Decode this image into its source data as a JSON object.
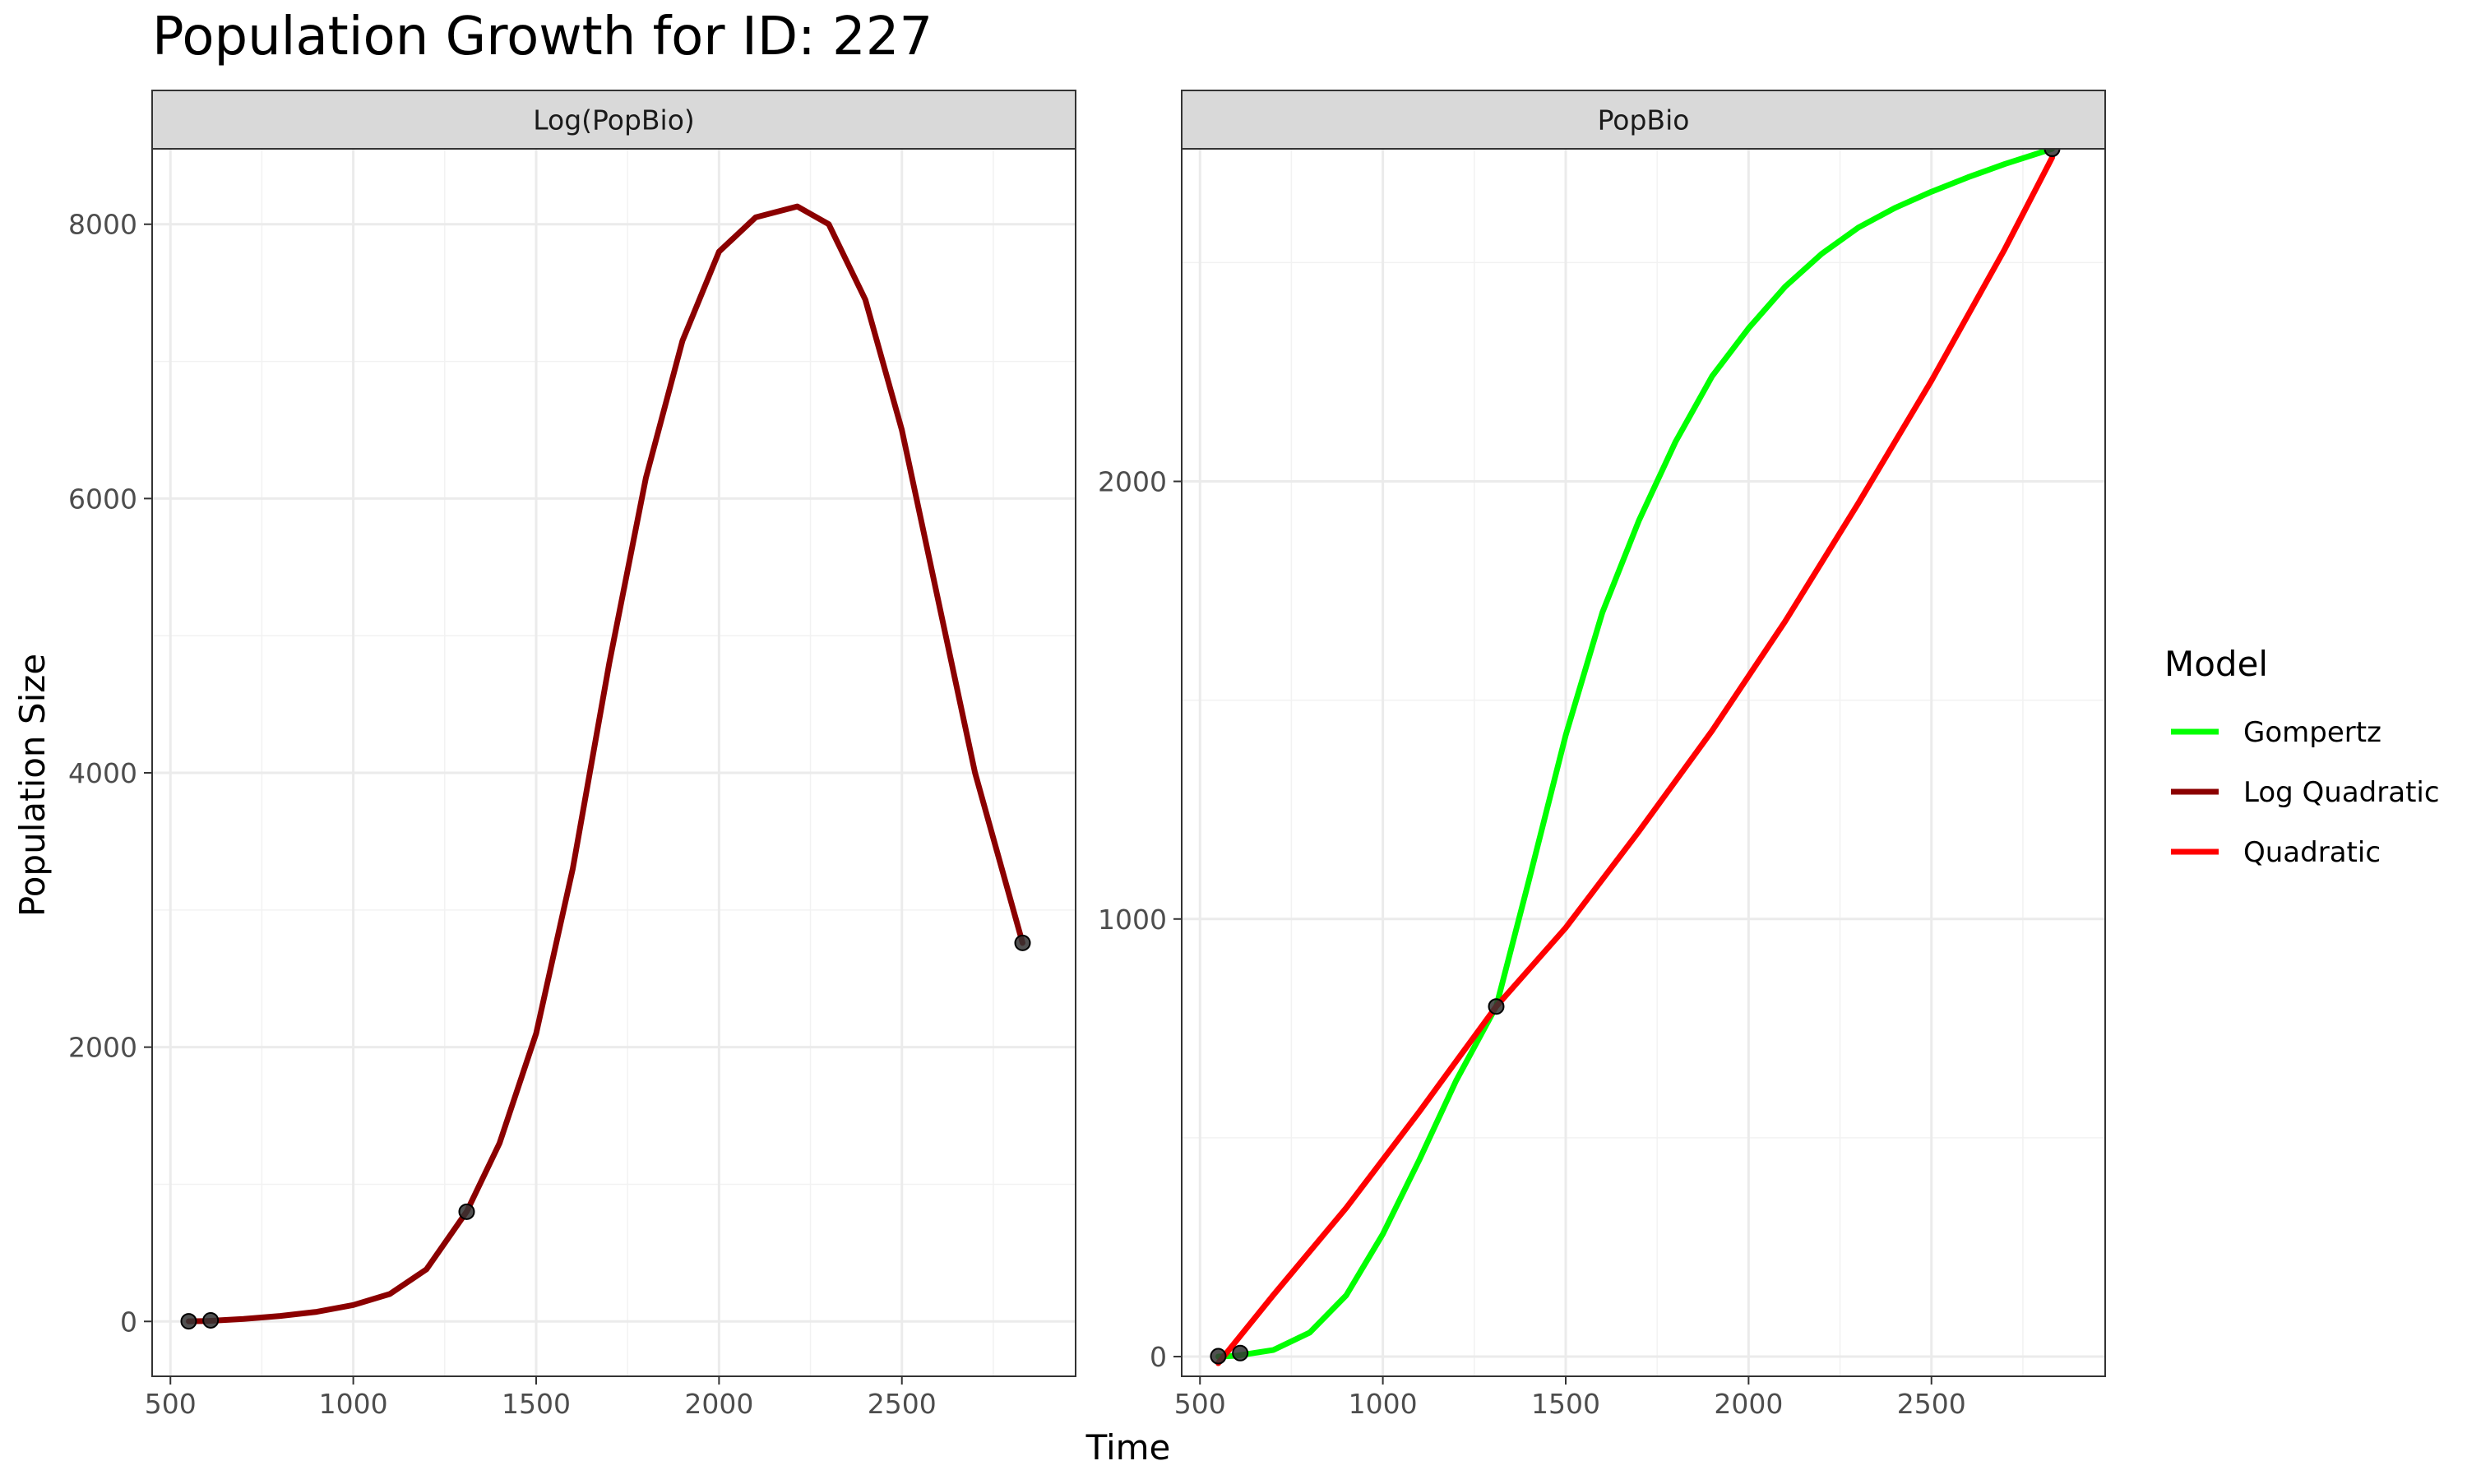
{
  "chart_data": {
    "type": "line",
    "title": "Population Growth for ID: 227",
    "xlabel": "Time",
    "ylabel": "Population Size",
    "legend": {
      "title": "Model",
      "position": "right",
      "entries": [
        {
          "label": "Gompertz",
          "color": "#00FF00"
        },
        {
          "label": "Log Quadratic",
          "color": "#8B0000"
        },
        {
          "label": "Quadratic",
          "color": "#FF0000"
        }
      ]
    },
    "grid": true,
    "point_color": "#333333",
    "observed_points": [
      {
        "x": 550,
        "y": 1
      },
      {
        "x": 610,
        "y": 8
      },
      {
        "x": 1310,
        "y": 800
      },
      {
        "x": 2830,
        "y": 2760
      }
    ],
    "panels": [
      {
        "strip_label": "Log(PopBio)",
        "xlim": [
          450,
          2975
        ],
        "ylim": [
          -400,
          8550
        ],
        "x_ticks": [
          500,
          1000,
          1500,
          2000,
          2500
        ],
        "y_ticks": [
          0,
          2000,
          4000,
          6000,
          8000
        ],
        "series": [
          {
            "name": "Log Quadratic",
            "color": "#8B0000",
            "x": [
              550,
              600,
              700,
              800,
              900,
              1000,
              1100,
              1200,
              1310,
              1400,
              1500,
              1600,
              1700,
              1800,
              1900,
              2000,
              2100,
              2214,
              2300,
              2400,
              2500,
              2600,
              2700,
              2830
            ],
            "y": [
              1,
              3,
              18,
              40,
              70,
              120,
              200,
              380,
              800,
              1300,
              2100,
              3300,
              4800,
              6150,
              7150,
              7800,
              8050,
              8130,
              8000,
              7450,
              6500,
              5250,
              4000,
              2760
            ]
          }
        ]
      },
      {
        "strip_label": "PopBio",
        "xlim": [
          450,
          2975
        ],
        "ylim": [
          -45,
          2760
        ],
        "x_ticks": [
          500,
          1000,
          1500,
          2000,
          2500
        ],
        "y_ticks": [
          0,
          1000,
          2000
        ],
        "series": [
          {
            "name": "Gompertz",
            "color": "#00FF00",
            "x": [
              550,
              600,
              700,
              800,
              900,
              1000,
              1100,
              1200,
              1310,
              1400,
              1500,
              1600,
              1700,
              1800,
              1900,
              2000,
              2100,
              2200,
              2300,
              2400,
              2500,
              2600,
              2700,
              2830
            ],
            "y": [
              0,
              2,
              15,
              55,
              140,
              280,
              450,
              630,
              800,
              1090,
              1420,
              1700,
              1910,
              2090,
              2240,
              2350,
              2445,
              2520,
              2580,
              2625,
              2662,
              2695,
              2725,
              2760
            ]
          },
          {
            "name": "Quadratic",
            "color": "#FF0000",
            "x": [
              550,
              700,
              900,
              1100,
              1310,
              1500,
              1700,
              1900,
              2100,
              2300,
              2500,
              2700,
              2830
            ],
            "y": [
              -15,
              140,
              340,
              560,
              800,
              980,
              1200,
              1430,
              1680,
              1950,
              2230,
              2530,
              2740
            ]
          }
        ]
      }
    ]
  }
}
